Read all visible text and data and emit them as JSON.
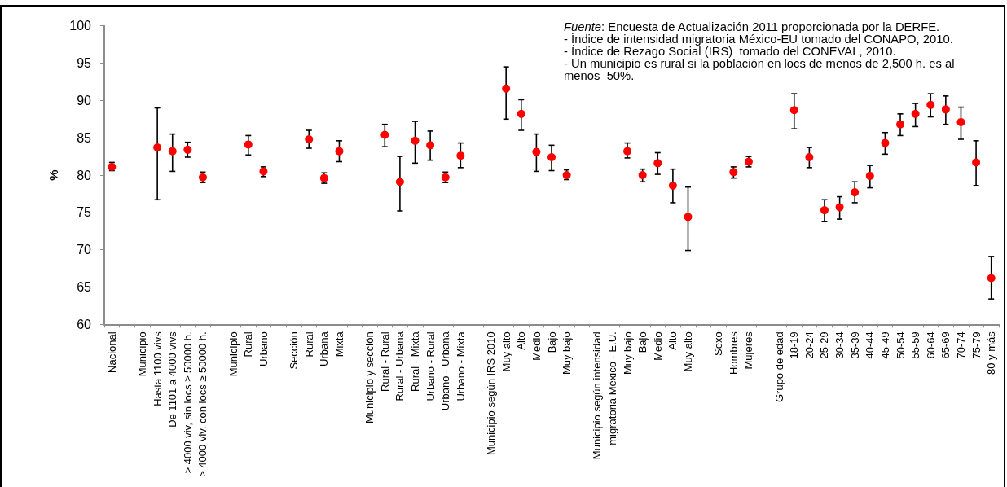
{
  "chart_data": {
    "type": "scatter",
    "ylabel": "%",
    "color": "#ff0000",
    "marker": "circle",
    "categories": [
      "Nacional",
      null,
      "Municipio",
      "Hasta 1100 vivs",
      "De 1101 a 4000 vivs",
      "> 4000 viv, sin locs ≥ 50000 h.",
      "> 4000 viv, con locs ≥ 50000 h.",
      null,
      "Municipio",
      "Rural",
      "Urbano",
      null,
      "Sección",
      "Rural",
      "Urbana",
      "Mixta",
      null,
      "Municipio y sección",
      "Rural - Rural",
      "Rural - Urbana",
      "Rural - Mixta",
      "Urbano - Rural",
      "Urbano - Urbana",
      "Urbano - Mixta",
      null,
      "Municipio según IRS 2010",
      "Muy alto",
      "Alto",
      "Medio",
      "Bajo",
      "Muy bajo",
      null,
      "Municipio según intensidad",
      "migratoria México - E.U.",
      "Muy bajo",
      "Bajo",
      "Medio",
      "Alto",
      "Muy alto",
      null,
      "Sexo",
      "Hombres",
      "Mujeres",
      null,
      "Grupo de edad",
      "18-19",
      "20-24",
      "25-29",
      "30-34",
      "35-39",
      "40-44",
      "45-49",
      "50-54",
      "55-59",
      "60-64",
      "65-69",
      "70-74",
      "75-79",
      "80 y más"
    ],
    "values": [
      81.1,
      null,
      null,
      83.7,
      83.2,
      83.4,
      79.7,
      null,
      null,
      84.1,
      80.5,
      null,
      null,
      84.8,
      79.6,
      83.2,
      null,
      null,
      85.4,
      79.1,
      84.6,
      84.0,
      79.7,
      82.6,
      null,
      null,
      91.6,
      88.2,
      83.1,
      82.4,
      80.0,
      null,
      null,
      null,
      83.2,
      80.0,
      81.6,
      78.6,
      74.4,
      null,
      null,
      80.4,
      81.8,
      null,
      null,
      88.7,
      82.4,
      75.3,
      75.7,
      77.7,
      79.9,
      84.3,
      86.8,
      88.2,
      89.4,
      88.8,
      87.1,
      81.7,
      66.2
    ],
    "errors": [
      [
        80.6,
        81.7
      ],
      null,
      null,
      [
        76.7,
        89.0
      ],
      [
        80.5,
        85.5
      ],
      [
        82.4,
        84.4
      ],
      [
        79.0,
        80.4
      ],
      null,
      null,
      [
        82.7,
        85.3
      ],
      [
        79.8,
        81.1
      ],
      null,
      null,
      [
        83.6,
        86.0
      ],
      [
        78.9,
        80.3
      ],
      [
        81.8,
        84.6
      ],
      null,
      null,
      [
        83.8,
        86.8
      ],
      [
        75.2,
        82.5
      ],
      [
        81.6,
        87.2
      ],
      [
        82.0,
        85.9
      ],
      [
        79.0,
        80.4
      ],
      [
        81.0,
        84.3
      ],
      null,
      null,
      [
        87.5,
        94.5
      ],
      [
        86.0,
        90.1
      ],
      [
        80.5,
        85.5
      ],
      [
        80.6,
        84.0
      ],
      [
        79.4,
        80.7
      ],
      null,
      null,
      null,
      [
        82.3,
        84.3
      ],
      [
        79.1,
        80.8
      ],
      [
        80.1,
        83.0
      ],
      [
        76.3,
        80.8
      ],
      [
        69.9,
        78.4
      ],
      null,
      null,
      [
        79.6,
        81.1
      ],
      [
        81.1,
        82.5
      ],
      null,
      null,
      [
        86.2,
        90.9
      ],
      [
        81.0,
        83.7
      ],
      [
        73.8,
        76.7
      ],
      [
        74.1,
        77.1
      ],
      [
        76.3,
        79.1
      ],
      [
        78.3,
        81.3
      ],
      [
        82.8,
        85.7
      ],
      [
        85.3,
        88.2
      ],
      [
        86.5,
        89.6
      ],
      [
        87.8,
        90.9
      ],
      [
        86.8,
        90.6
      ],
      [
        84.8,
        89.1
      ],
      [
        78.6,
        84.6
      ],
      [
        63.4,
        69.1
      ]
    ],
    "ylim": [
      60,
      100
    ],
    "yticks": [
      60,
      65,
      70,
      75,
      80,
      85,
      90,
      95,
      100
    ],
    "annotations": [
      "Fuente: Encuesta de Actualización 2011 proporcionada por la DERFE.",
      "- Índice de intensidad migratoria México-EU tomado del CONAPO, 2010.",
      "- Índice de Rezago Social (IRS)  tomado del CONEVAL, 2010.",
      "- Un municipio es rural si la población en locs de menos de 2,500 h. es al menos  50%."
    ]
  }
}
